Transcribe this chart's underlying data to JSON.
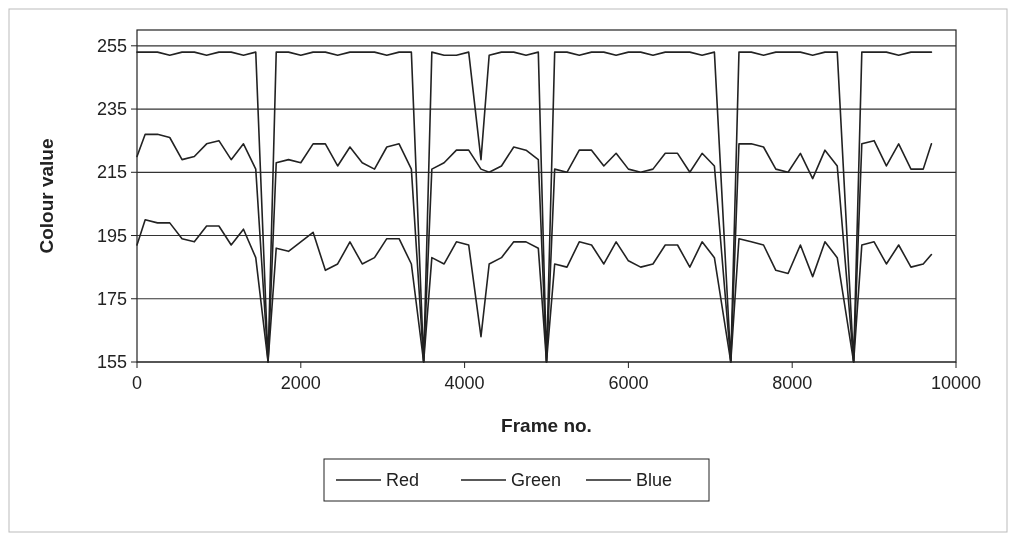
{
  "chart_data": {
    "type": "line",
    "xlabel": "Frame no.",
    "ylabel": "Colour value",
    "x": [
      0,
      100,
      250,
      400,
      550,
      700,
      850,
      1000,
      1150,
      1300,
      1450,
      1600,
      1700,
      1850,
      2000,
      2150,
      2300,
      2450,
      2600,
      2750,
      2900,
      3050,
      3200,
      3350,
      3500,
      3600,
      3750,
      3900,
      4050,
      4200,
      4300,
      4450,
      4600,
      4750,
      4900,
      5000,
      5100,
      5250,
      5400,
      5550,
      5700,
      5850,
      6000,
      6150,
      6300,
      6450,
      6600,
      6750,
      6900,
      7050,
      7250,
      7350,
      7500,
      7650,
      7800,
      7950,
      8100,
      8250,
      8400,
      8550,
      8750,
      8850,
      9000,
      9150,
      9300,
      9450,
      9600,
      9700
    ],
    "series": [
      {
        "name": "Red",
        "color": "#222222",
        "values": [
          253,
          253,
          253,
          252,
          253,
          253,
          252,
          253,
          253,
          252,
          253,
          155,
          253,
          253,
          252,
          253,
          253,
          252,
          253,
          253,
          253,
          252,
          253,
          253,
          155,
          253,
          252,
          252,
          253,
          219,
          252,
          253,
          253,
          252,
          253,
          155,
          253,
          253,
          252,
          253,
          253,
          252,
          253,
          253,
          252,
          253,
          253,
          253,
          252,
          253,
          155,
          253,
          253,
          252,
          253,
          253,
          253,
          252,
          253,
          253,
          155,
          253,
          253,
          253,
          252,
          253,
          253,
          253
        ]
      },
      {
        "name": "Green",
        "color": "#222222",
        "values": [
          220,
          227,
          227,
          226,
          219,
          220,
          224,
          225,
          219,
          224,
          216,
          155,
          218,
          219,
          218,
          224,
          224,
          217,
          223,
          218,
          216,
          223,
          224,
          216,
          155,
          216,
          218,
          222,
          222,
          216,
          215,
          217,
          223,
          222,
          219,
          155,
          216,
          215,
          222,
          222,
          217,
          221,
          216,
          215,
          216,
          221,
          221,
          215,
          221,
          217,
          155,
          224,
          224,
          223,
          216,
          215,
          221,
          213,
          222,
          217,
          155,
          224,
          225,
          217,
          224,
          216,
          216,
          224
        ]
      },
      {
        "name": "Blue",
        "color": "#222222",
        "values": [
          192,
          200,
          199,
          199,
          194,
          193,
          198,
          198,
          192,
          197,
          188,
          155,
          191,
          190,
          193,
          196,
          184,
          186,
          193,
          186,
          188,
          194,
          194,
          186,
          155,
          188,
          186,
          193,
          192,
          163,
          186,
          188,
          193,
          193,
          191,
          155,
          186,
          185,
          193,
          192,
          186,
          193,
          187,
          185,
          186,
          192,
          192,
          185,
          193,
          188,
          155,
          194,
          193,
          192,
          184,
          183,
          192,
          182,
          193,
          188,
          155,
          192,
          193,
          186,
          192,
          185,
          186,
          189
        ]
      }
    ],
    "xlim": [
      0,
      10000
    ],
    "xticks": [
      0,
      2000,
      4000,
      6000,
      8000,
      10000
    ],
    "ylim": [
      155,
      260
    ],
    "yticks": [
      155,
      175,
      195,
      215,
      235,
      255
    ],
    "grid": "y",
    "legend": "bottom",
    "marker": "none",
    "line_style": "solid"
  }
}
